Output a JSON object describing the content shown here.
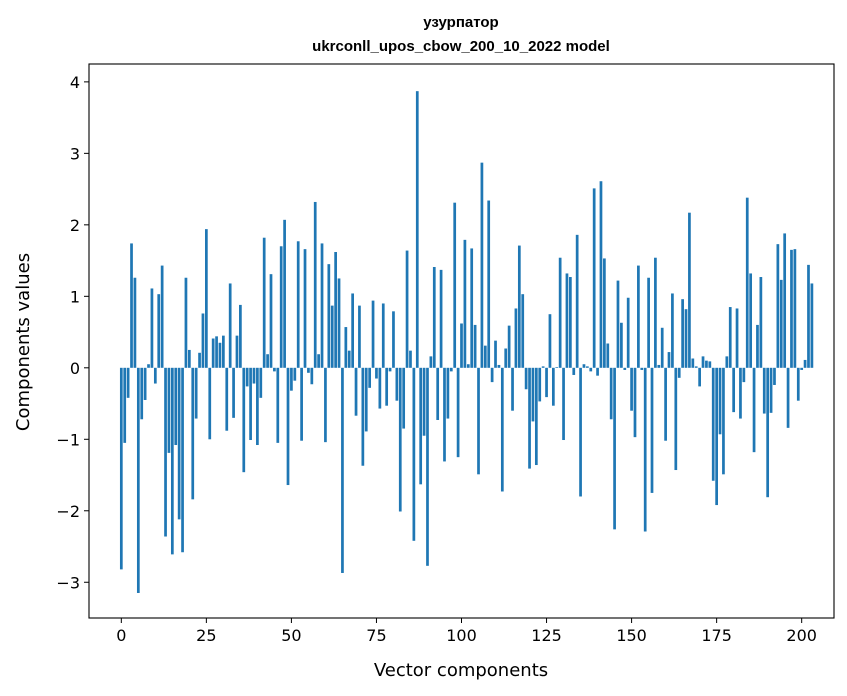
{
  "chart_data": {
    "type": "bar",
    "title_line1": "узурпатор",
    "title_line2": "ukrconll_upos_cbow_200_10_2022 model",
    "xlabel": "Vector components",
    "ylabel": "Components values",
    "xlim": [
      -9.5,
      209.5
    ],
    "ylim": [
      -3.5,
      4.25
    ],
    "xticks": [
      0,
      25,
      50,
      75,
      100,
      125,
      150,
      175,
      200
    ],
    "xtick_labels": [
      "0",
      "25",
      "50",
      "75",
      "100",
      "125",
      "150",
      "175",
      "200"
    ],
    "yticks": [
      -3,
      -2,
      -1,
      0,
      1,
      2,
      3,
      4
    ],
    "ytick_labels": [
      "−3",
      "−2",
      "−1",
      "0",
      "1",
      "2",
      "3",
      "4"
    ],
    "bar_color": "#1f77b4",
    "values": [
      -2.82,
      -1.05,
      -0.42,
      1.74,
      1.26,
      -3.15,
      -0.72,
      -0.45,
      0.05,
      1.11,
      -0.22,
      1.03,
      1.43,
      -2.36,
      -1.19,
      -2.61,
      -1.08,
      -2.12,
      -2.58,
      1.26,
      0.25,
      -1.84,
      -0.71,
      0.21,
      0.76,
      1.94,
      -1.0,
      0.41,
      0.44,
      0.35,
      0.45,
      -0.88,
      1.18,
      -0.7,
      0.45,
      0.88,
      -1.46,
      -0.26,
      -1.01,
      -0.22,
      -1.08,
      -0.42,
      1.82,
      0.19,
      1.31,
      -0.05,
      -1.05,
      1.7,
      2.07,
      -1.64,
      -0.32,
      -0.18,
      1.77,
      -1.02,
      1.66,
      -0.07,
      -0.23,
      2.32,
      0.19,
      1.74,
      -1.04,
      1.45,
      0.87,
      1.62,
      1.25,
      -2.87,
      0.57,
      0.24,
      1.04,
      -0.67,
      0.87,
      -1.37,
      -0.89,
      -0.28,
      0.94,
      -0.15,
      -0.57,
      0.9,
      -0.53,
      -0.05,
      0.79,
      -0.46,
      -2.01,
      -0.85,
      1.64,
      0.24,
      -2.42,
      3.87,
      -1.63,
      -0.95,
      -2.77,
      0.16,
      1.41,
      -0.73,
      1.37,
      -1.31,
      -0.71,
      -0.05,
      2.31,
      -1.25,
      0.62,
      1.79,
      0.05,
      1.67,
      0.6,
      -1.49,
      2.87,
      0.31,
      2.34,
      -0.2,
      0.38,
      0.04,
      -1.73,
      0.27,
      0.59,
      -0.6,
      0.83,
      1.71,
      1.03,
      -0.3,
      -1.41,
      -0.75,
      -1.36,
      -0.47,
      0.02,
      -0.41,
      0.75,
      -0.53,
      0.01,
      1.54,
      -1.01,
      1.32,
      1.27,
      -0.1,
      1.86,
      -1.8,
      0.05,
      0.02,
      -0.05,
      2.51,
      -0.11,
      2.61,
      1.53,
      0.34,
      -0.72,
      -2.26,
      1.22,
      0.63,
      -0.03,
      0.98,
      -0.6,
      -0.97,
      1.43,
      -0.03,
      -2.29,
      1.26,
      -1.75,
      1.54,
      0.04,
      0.56,
      -1.02,
      0.22,
      1.04,
      -1.43,
      -0.14,
      0.96,
      0.82,
      2.17,
      0.13,
      0.02,
      -0.26,
      0.16,
      0.1,
      0.09,
      -1.58,
      -1.92,
      -0.93,
      -1.49,
      0.16,
      0.85,
      -0.62,
      0.83,
      -0.71,
      -0.2,
      2.38,
      1.32,
      -1.18,
      0.6,
      1.27,
      -0.64,
      -1.81,
      -0.63,
      -0.24,
      1.73,
      1.23,
      1.88,
      -0.84,
      1.65,
      1.66,
      -0.46,
      -0.03,
      0.11,
      1.44,
      1.18
    ]
  }
}
